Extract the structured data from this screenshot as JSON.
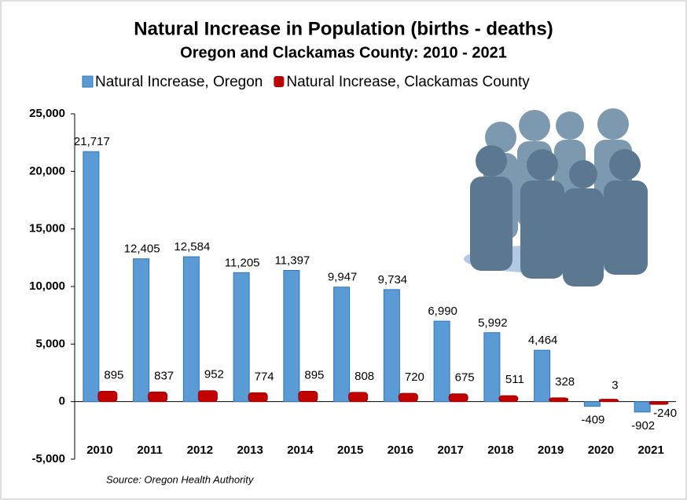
{
  "chart_data": {
    "type": "bar",
    "title": "Natural Increase in Population (births - deaths)",
    "subtitle": "Oregon and Clackamas County: 2010 - 2021",
    "source": "Source: Oregon Health Authority",
    "categories": [
      "2010",
      "2011",
      "2012",
      "2013",
      "2014",
      "2015",
      "2016",
      "2017",
      "2018",
      "2019",
      "2020",
      "2021"
    ],
    "series": [
      {
        "name": "Natural Increase, Oregon",
        "color": "#5b9bd5",
        "values": [
          21717,
          12405,
          12584,
          11205,
          11397,
          9947,
          9734,
          6990,
          5992,
          4464,
          -409,
          -902
        ],
        "value_labels": [
          "21,717",
          "12,405",
          "12,584",
          "11,205",
          "11,397",
          "9,947",
          "9,734",
          "6,990",
          "5,992",
          "4,464",
          "-409",
          "-902"
        ]
      },
      {
        "name": "Natural Increase, Clackamas County",
        "color": "#c00000",
        "values": [
          895,
          837,
          952,
          774,
          895,
          808,
          720,
          675,
          511,
          328,
          3,
          -240
        ]
      }
    ],
    "ylim": [
      -5000,
      25000
    ],
    "yticks": [
      {
        "value": -5000,
        "label": "-5,000"
      },
      0,
      {
        "value": 5000,
        "label": "5,000"
      },
      {
        "value": 10000,
        "label": "10,000"
      },
      {
        "value": 15000,
        "label": "15,000"
      },
      {
        "value": 20000,
        "label": "20,000"
      },
      {
        "value": 25000,
        "label": "25,000"
      }
    ],
    "grid": false,
    "legend": "top"
  }
}
